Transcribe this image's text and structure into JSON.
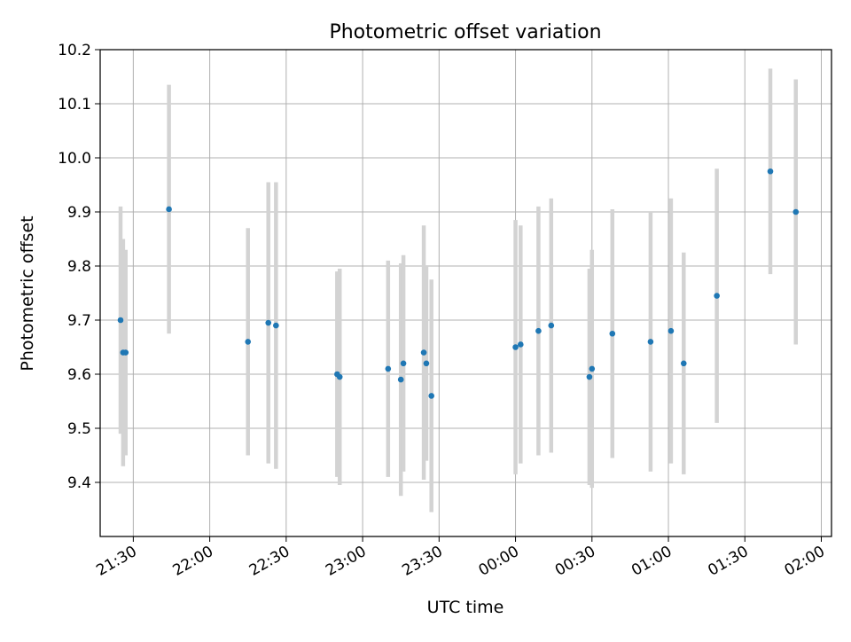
{
  "chart_data": {
    "type": "scatter",
    "title": "Photometric offset variation",
    "xlabel": "UTC time",
    "ylabel": "Photometric offset",
    "x_axis_kind": "time-of-day",
    "xlim": [
      "21:17",
      "02:04"
    ],
    "ylim": [
      9.3,
      10.2
    ],
    "x_ticks": [
      "21:30",
      "22:00",
      "22:30",
      "23:00",
      "23:30",
      "00:00",
      "00:30",
      "01:00",
      "01:30",
      "02:00"
    ],
    "x_tick_rotation": 30,
    "y_ticks": [
      "9.4",
      "9.5",
      "9.6",
      "9.7",
      "9.8",
      "9.9",
      "10.0",
      "10.1",
      "10.2"
    ],
    "grid": true,
    "legend": "none",
    "series": [
      {
        "marker": "dot",
        "color": "#1f77b4",
        "errorbar_color": "#d3d3d3",
        "points": [
          {
            "x": "21:25",
            "y": 9.7,
            "err": 0.21
          },
          {
            "x": "21:26",
            "y": 9.64,
            "err": 0.21
          },
          {
            "x": "21:27",
            "y": 9.64,
            "err": 0.19
          },
          {
            "x": "21:44",
            "y": 9.905,
            "err": 0.23
          },
          {
            "x": "22:15",
            "y": 9.66,
            "err": 0.21
          },
          {
            "x": "22:23",
            "y": 9.695,
            "err": 0.26
          },
          {
            "x": "22:26",
            "y": 9.69,
            "err": 0.265
          },
          {
            "x": "22:50",
            "y": 9.6,
            "err": 0.19
          },
          {
            "x": "22:51",
            "y": 9.595,
            "err": 0.2
          },
          {
            "x": "23:10",
            "y": 9.61,
            "err": 0.2
          },
          {
            "x": "23:15",
            "y": 9.59,
            "err": 0.215
          },
          {
            "x": "23:16",
            "y": 9.62,
            "err": 0.2
          },
          {
            "x": "23:24",
            "y": 9.64,
            "err": 0.235
          },
          {
            "x": "23:25",
            "y": 9.62,
            "err": 0.18
          },
          {
            "x": "23:27",
            "y": 9.56,
            "err": 0.215
          },
          {
            "x": "00:00",
            "y": 9.65,
            "err": 0.235
          },
          {
            "x": "00:02",
            "y": 9.655,
            "err": 0.22
          },
          {
            "x": "00:09",
            "y": 9.68,
            "err": 0.23
          },
          {
            "x": "00:14",
            "y": 9.69,
            "err": 0.235
          },
          {
            "x": "00:29",
            "y": 9.595,
            "err": 0.2
          },
          {
            "x": "00:30",
            "y": 9.61,
            "err": 0.22
          },
          {
            "x": "00:38",
            "y": 9.675,
            "err": 0.23
          },
          {
            "x": "00:53",
            "y": 9.66,
            "err": 0.24
          },
          {
            "x": "01:01",
            "y": 9.68,
            "err": 0.245
          },
          {
            "x": "01:06",
            "y": 9.62,
            "err": 0.205
          },
          {
            "x": "01:19",
            "y": 9.745,
            "err": 0.235
          },
          {
            "x": "01:40",
            "y": 9.975,
            "err": 0.19
          },
          {
            "x": "01:50",
            "y": 9.9,
            "err": 0.245
          }
        ]
      }
    ]
  }
}
